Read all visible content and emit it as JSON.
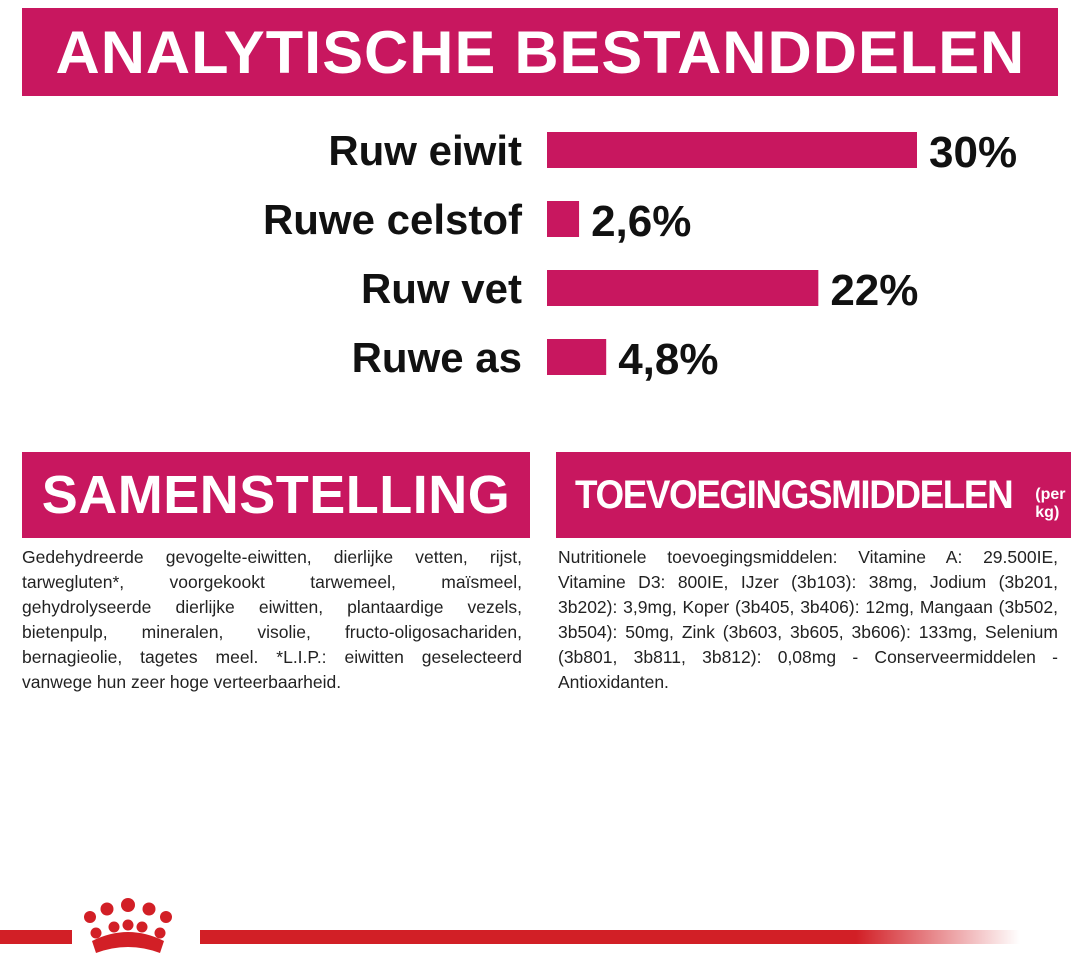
{
  "header": {
    "title": "ANALYTISCHE BESTANDDELEN"
  },
  "chart_data": {
    "type": "bar",
    "orientation": "horizontal",
    "categories": [
      "Ruw eiwit",
      "Ruwe celstof",
      "Ruw vet",
      "Ruwe as"
    ],
    "values": [
      30,
      2.6,
      22,
      4.8
    ],
    "value_labels": [
      "30%",
      "2,6%",
      "22%",
      "4,8%"
    ],
    "unit": "%",
    "bar_color": "#c8175f",
    "grid": false,
    "legend": "none"
  },
  "composition": {
    "title": "SAMENSTELLING",
    "text": "Gedehydreerde gevogelte-eiwitten, dierlijke vetten, rijst, tarwegluten*, voorgekookt tarwemeel, maïsmeel, gehydrolyseerde dierlijke eiwitten, plantaardige vezels, bietenpulp, mineralen, visolie, fructo-oligosachariden, bernagieolie, tagetes meel. *L.I.P.: eiwitten geselecteerd vanwege hun zeer hoge verteerbaarheid."
  },
  "additives": {
    "title": "TOEVOEGINGSMIDDELEN",
    "subtitle": "(per kg)",
    "text": "Nutritionele toevoegingsmiddelen: Vitamine A: 29.500IE, Vitamine D3: 800IE, IJzer (3b103): 38mg, Jodium (3b201, 3b202): 3,9mg, Koper (3b405, 3b406): 12mg, Mangaan (3b502, 3b504): 50mg, Zink (3b603, 3b605, 3b606): 133mg, Selenium (3b801, 3b811, 3b812): 0,08mg - Conserveermiddelen - Antioxidanten."
  },
  "footer": {
    "logo": "crown-icon",
    "accent_color": "#d21f26"
  }
}
